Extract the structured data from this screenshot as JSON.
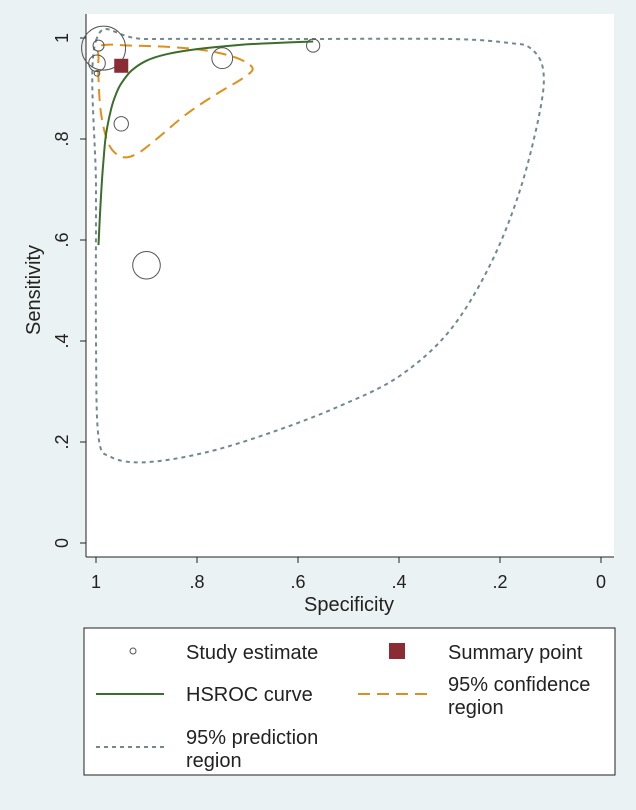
{
  "chart_data": {
    "type": "scatter",
    "title": "",
    "xlabel": "Specificity",
    "ylabel": "Sensitivity",
    "xlim": [
      1,
      0
    ],
    "ylim": [
      0,
      1
    ],
    "x_ticks": [
      {
        "value": 1,
        "label": "1"
      },
      {
        "value": 0.8,
        "label": ".8"
      },
      {
        "value": 0.6,
        "label": ".6"
      },
      {
        "value": 0.4,
        "label": ".4"
      },
      {
        "value": 0.2,
        "label": ".2"
      },
      {
        "value": 0,
        "label": "0"
      }
    ],
    "y_ticks": [
      {
        "value": 0,
        "label": "0"
      },
      {
        "value": 0.2,
        "label": ".2"
      },
      {
        "value": 0.4,
        "label": ".4"
      },
      {
        "value": 0.6,
        "label": ".6"
      },
      {
        "value": 0.8,
        "label": ".8"
      },
      {
        "value": 1,
        "label": "1"
      }
    ],
    "study_estimates": [
      {
        "specificity": 0.985,
        "sensitivity": 0.98,
        "weight": 4.0
      },
      {
        "specificity": 0.995,
        "sensitivity": 0.985,
        "weight": 1.0
      },
      {
        "specificity": 0.998,
        "sensitivity": 0.95,
        "weight": 1.5
      },
      {
        "specificity": 0.998,
        "sensitivity": 0.93,
        "weight": 0.5
      },
      {
        "specificity": 0.75,
        "sensitivity": 0.96,
        "weight": 1.9
      },
      {
        "specificity": 0.57,
        "sensitivity": 0.985,
        "weight": 1.2
      },
      {
        "specificity": 0.95,
        "sensitivity": 0.83,
        "weight": 1.3
      },
      {
        "specificity": 0.9,
        "sensitivity": 0.55,
        "weight": 2.5
      }
    ],
    "summary_point": {
      "specificity": 0.95,
      "sensitivity": 0.945
    },
    "hsroc_curve": [
      [
        0.995,
        0.59
      ],
      [
        0.99,
        0.69
      ],
      [
        0.985,
        0.76
      ],
      [
        0.98,
        0.81
      ],
      [
        0.97,
        0.86
      ],
      [
        0.96,
        0.89
      ],
      [
        0.95,
        0.91
      ],
      [
        0.93,
        0.935
      ],
      [
        0.9,
        0.955
      ],
      [
        0.86,
        0.968
      ],
      [
        0.8,
        0.978
      ],
      [
        0.72,
        0.986
      ],
      [
        0.65,
        0.99
      ],
      [
        0.57,
        0.993
      ]
    ],
    "confidence_region": [
      [
        0.99,
        0.985
      ],
      [
        0.93,
        0.985
      ],
      [
        0.85,
        0.982
      ],
      [
        0.78,
        0.975
      ],
      [
        0.72,
        0.96
      ],
      [
        0.69,
        0.94
      ],
      [
        0.71,
        0.92
      ],
      [
        0.76,
        0.89
      ],
      [
        0.82,
        0.85
      ],
      [
        0.88,
        0.8
      ],
      [
        0.92,
        0.77
      ],
      [
        0.95,
        0.765
      ],
      [
        0.975,
        0.79
      ],
      [
        0.99,
        0.85
      ],
      [
        0.995,
        0.92
      ],
      [
        0.995,
        0.96
      ],
      [
        0.99,
        0.985
      ]
    ],
    "prediction_region": [
      [
        1.0,
        0.995
      ],
      [
        0.9,
        0.998
      ],
      [
        0.6,
        0.998
      ],
      [
        0.3,
        0.998
      ],
      [
        0.18,
        0.99
      ],
      [
        0.14,
        0.98
      ],
      [
        0.115,
        0.94
      ],
      [
        0.12,
        0.86
      ],
      [
        0.16,
        0.7
      ],
      [
        0.22,
        0.55
      ],
      [
        0.3,
        0.42
      ],
      [
        0.4,
        0.33
      ],
      [
        0.52,
        0.27
      ],
      [
        0.65,
        0.22
      ],
      [
        0.78,
        0.18
      ],
      [
        0.9,
        0.16
      ],
      [
        0.97,
        0.17
      ],
      [
        0.995,
        0.21
      ],
      [
        1.0,
        0.4
      ],
      [
        1.0,
        0.7
      ],
      [
        1.0,
        0.995
      ]
    ],
    "legend": {
      "position": "bottom",
      "entries": [
        {
          "key": "study",
          "label_lines": [
            "Study estimate"
          ]
        },
        {
          "key": "summary",
          "label_lines": [
            "Summary point"
          ]
        },
        {
          "key": "hsroc",
          "label_lines": [
            "HSROC curve"
          ]
        },
        {
          "key": "confidence",
          "label_lines": [
            "95% confidence",
            "region"
          ]
        },
        {
          "key": "prediction",
          "label_lines": [
            "95% prediction",
            "region"
          ]
        }
      ]
    },
    "colors": {
      "study_marker": "#555555",
      "summary_point": "#8b2c34",
      "hsroc_curve": "#3b6e2a",
      "confidence_region": "#e0901a",
      "prediction_region": "#6f8a8f",
      "plot_background": "#ffffff",
      "page_background": "#eaf2f3"
    }
  }
}
